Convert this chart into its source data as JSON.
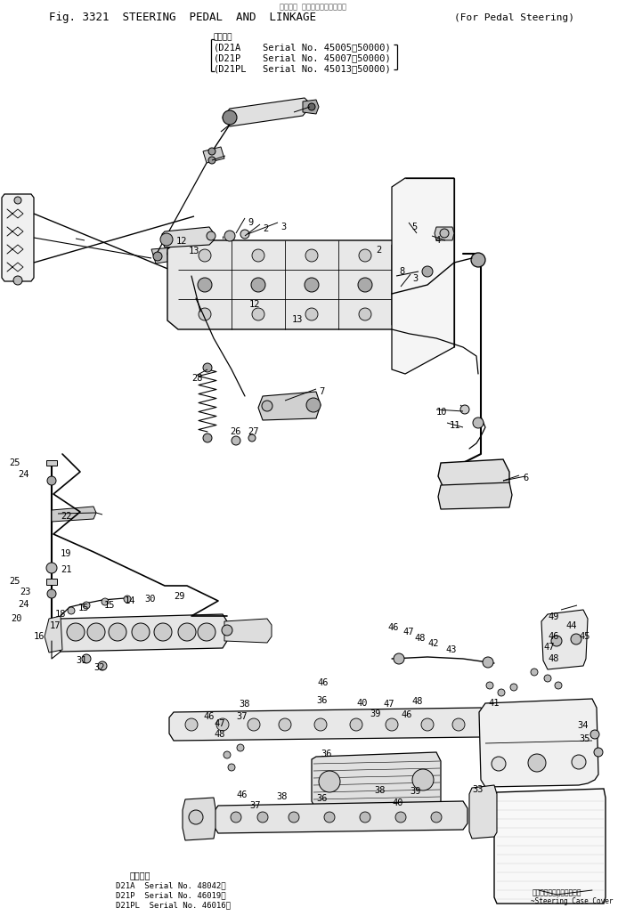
{
  "title_top": "適用号機 ペダルステアリング用",
  "title_main": "Fig. 3321  STEERING  PEDAL  AND  LINKAGE",
  "title_paren": "(For Pedal Steering)",
  "subtitle": "適用号機",
  "models_top": [
    [
      "(D21A",
      "Serial No. 45005～50000)"
    ],
    [
      "(D21P",
      "Serial No. 45007～50000)"
    ],
    [
      "(D21PL",
      "Serial No. 45013～50000)"
    ]
  ],
  "bottom_title": "適用号機",
  "models_bottom": [
    [
      "D21A",
      "Serial No. 48042～"
    ],
    [
      "D21P",
      "Serial No. 46019～"
    ],
    [
      "D21PL",
      "Serial No. 46016～"
    ]
  ],
  "steering_cover_jp": "ステアリングケースカバー",
  "steering_cover_en": "~Steering Case Cover",
  "bg": "#ffffff",
  "lc": "#000000",
  "dpi": 100,
  "fw": 7.03,
  "fh": 10.29
}
